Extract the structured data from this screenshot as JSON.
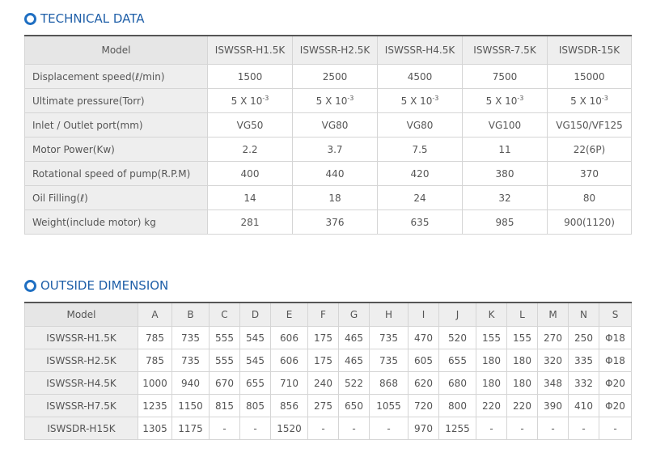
{
  "technical": {
    "title": "TECHNICAL DATA",
    "header": {
      "model": "Model",
      "columns": [
        "ISWSSR-H1.5K",
        "ISWSSR-H2.5K",
        "ISWSSR-H4.5K",
        "ISWSSR-7.5K",
        "ISWSDR-15K"
      ]
    },
    "rows": [
      {
        "label": "Displacement speed(ℓ/min)",
        "values": [
          "1500",
          "2500",
          "4500",
          "7500",
          "15000"
        ]
      },
      {
        "label": "Ultimate pressure(Torr)",
        "values": [
          "5 X 10",
          "5 X 10",
          "5 X 10",
          "5 X 10",
          "5 X 10"
        ],
        "exponent": "-3"
      },
      {
        "label": "Inlet / Outlet port(mm)",
        "values": [
          "VG50",
          "VG80",
          "VG80",
          "VG100",
          "VG150/VF125"
        ]
      },
      {
        "label": "Motor Power(Kw)",
        "values": [
          "2.2",
          "3.7",
          "7.5",
          "11",
          "22(6P)"
        ]
      },
      {
        "label": "Rotational speed of pump(R.P.M)",
        "values": [
          "400",
          "440",
          "420",
          "380",
          "370"
        ]
      },
      {
        "label": "Oil Filling(ℓ)",
        "values": [
          "14",
          "18",
          "24",
          "32",
          "80"
        ]
      },
      {
        "label": "Weight(include motor) kg",
        "values": [
          "281",
          "376",
          "635",
          "985",
          "900(1120)"
        ]
      }
    ]
  },
  "dimension": {
    "title": "OUTSIDE DIMENSION",
    "header": {
      "model": "Model",
      "columns": [
        "A",
        "B",
        "C",
        "D",
        "E",
        "F",
        "G",
        "H",
        "I",
        "J",
        "K",
        "L",
        "M",
        "N",
        "S"
      ]
    },
    "rows": [
      {
        "label": "ISWSSR-H1.5K",
        "values": [
          "785",
          "735",
          "555",
          "545",
          "606",
          "175",
          "465",
          "735",
          "470",
          "520",
          "155",
          "155",
          "270",
          "250",
          "Φ18"
        ]
      },
      {
        "label": "ISWSSR-H2.5K",
        "values": [
          "785",
          "735",
          "555",
          "545",
          "606",
          "175",
          "465",
          "735",
          "605",
          "655",
          "180",
          "180",
          "320",
          "335",
          "Φ18"
        ]
      },
      {
        "label": "ISWSSR-H4.5K",
        "values": [
          "1000",
          "940",
          "670",
          "655",
          "710",
          "240",
          "522",
          "868",
          "620",
          "680",
          "180",
          "180",
          "348",
          "332",
          "Φ20"
        ]
      },
      {
        "label": "ISWSSR-H7.5K",
        "values": [
          "1235",
          "1150",
          "815",
          "805",
          "856",
          "275",
          "650",
          "1055",
          "720",
          "800",
          "220",
          "220",
          "390",
          "410",
          "Φ20"
        ]
      },
      {
        "label": "ISWSDR-H15K",
        "values": [
          "1305",
          "1175",
          "-",
          "-",
          "1520",
          "-",
          "-",
          "-",
          "970",
          "1255",
          "-",
          "-",
          "-",
          "-",
          "-"
        ]
      }
    ]
  },
  "colors": {
    "accent": "#1f6fc2",
    "header_bg": "#eeeeee",
    "border": "#d5d5d5"
  }
}
